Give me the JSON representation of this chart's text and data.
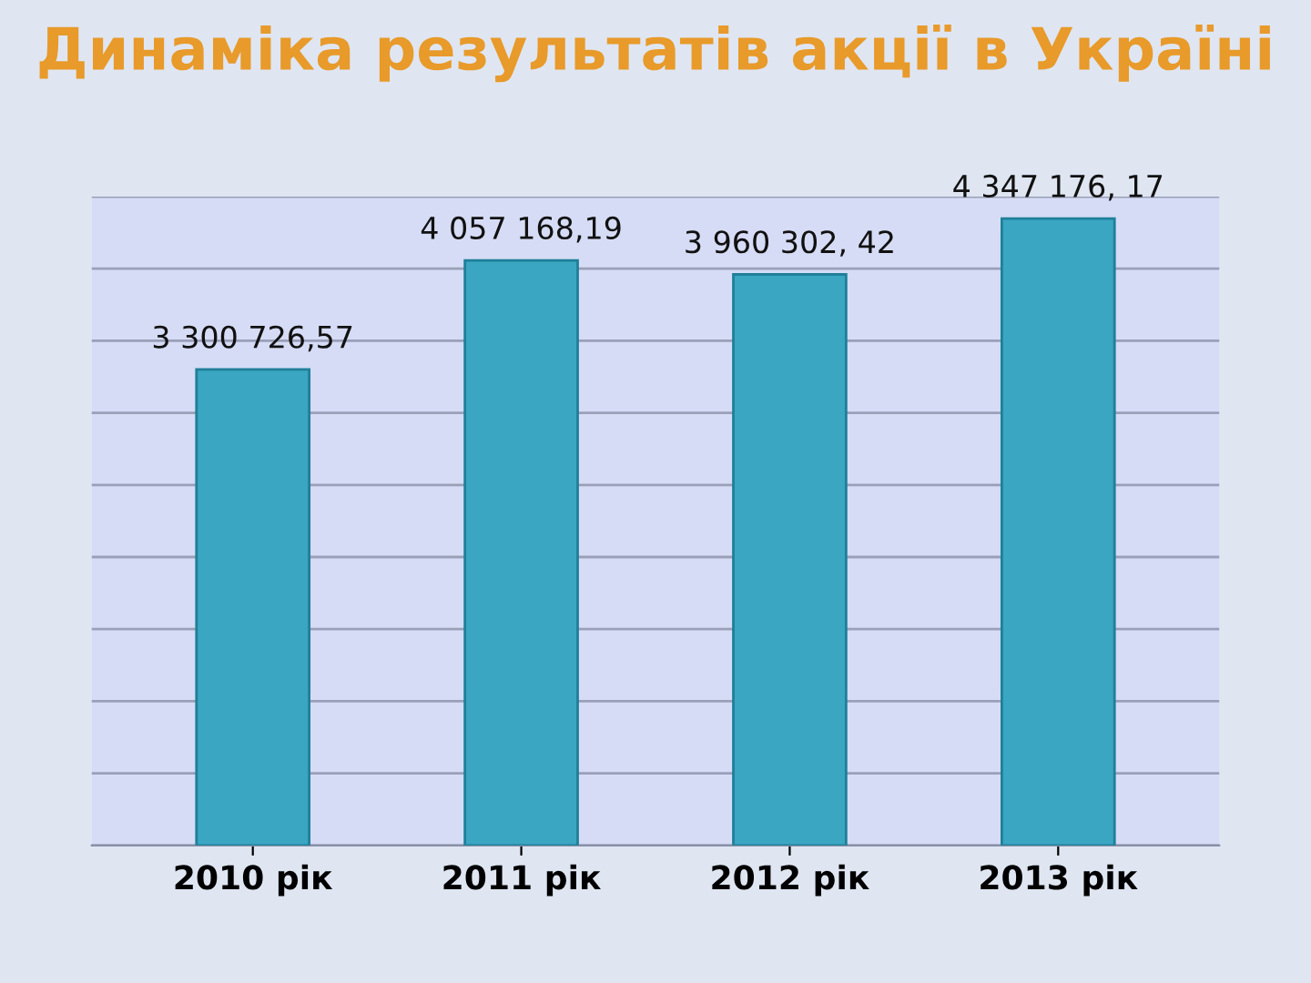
{
  "chart_data": {
    "type": "bar",
    "title": "Динаміка результатів акції в Україні",
    "categories": [
      "2010 рік",
      "2011 рік",
      "2012 рік",
      "2013 рік"
    ],
    "values": [
      3300726.57,
      4057168.19,
      3960302.42,
      4347176.17
    ],
    "value_labels": [
      "3 300 726,57",
      "4 057 168,19",
      "3 960 302, 42",
      "4 347 176, 17"
    ],
    "color": "#3aa6c2",
    "ylim": [
      0,
      4500000
    ],
    "yticks": [
      {
        "value": 0,
        "label": null
      },
      {
        "value": 500000,
        "label": null
      },
      {
        "value": 1000000,
        "label": null
      },
      {
        "value": 1500000,
        "label": null
      },
      {
        "value": 2000000,
        "label": null
      },
      {
        "value": 2500000,
        "label": null
      },
      {
        "value": 3000000,
        "label": null
      },
      {
        "value": 3500000,
        "label": null
      },
      {
        "value": 4000000,
        "label": null
      },
      {
        "value": 4500000,
        "label": null
      }
    ],
    "grid": "y",
    "tick_labels": "x"
  }
}
